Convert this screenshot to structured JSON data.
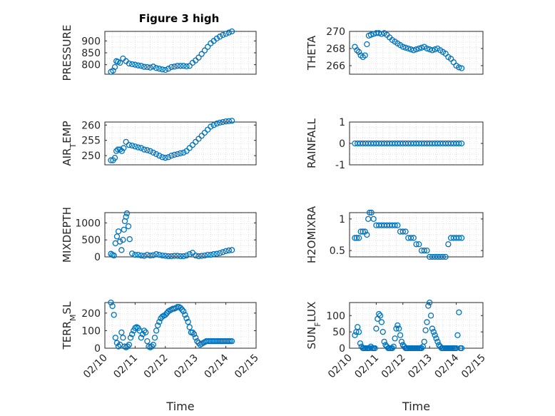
{
  "title": "Figure 3 high",
  "marker_color": "#0072bd",
  "chart_data": [
    {
      "id": "pressure",
      "type": "scatter",
      "ylabel_parts": [
        "PRESSURE"
      ],
      "xlim": [
        0,
        5
      ],
      "ylim": [
        760,
        940
      ],
      "yticks": [
        800,
        850,
        900
      ],
      "xticks": [],
      "x": [
        0.2,
        0.27,
        0.33,
        0.38,
        0.43,
        0.5,
        0.6,
        0.7,
        0.8,
        0.9,
        1.0,
        1.1,
        1.2,
        1.3,
        1.4,
        1.5,
        1.6,
        1.7,
        1.8,
        1.9,
        2.0,
        2.1,
        2.2,
        2.3,
        2.4,
        2.5,
        2.6,
        2.7,
        2.8,
        2.9,
        3.0,
        3.1,
        3.2,
        3.3,
        3.4,
        3.5,
        3.6,
        3.7,
        3.8,
        3.9,
        4.0,
        4.1,
        4.2
      ],
      "y": [
        770,
        775,
        790,
        815,
        812,
        808,
        826,
        815,
        805,
        802,
        800,
        797,
        795,
        791,
        790,
        788,
        792,
        786,
        783,
        780,
        778,
        783,
        790,
        792,
        795,
        795,
        795,
        793,
        795,
        808,
        818,
        830,
        845,
        860,
        875,
        890,
        900,
        910,
        918,
        925,
        930,
        935,
        940
      ]
    },
    {
      "id": "theta",
      "type": "scatter",
      "ylabel_parts": [
        "THETA"
      ],
      "xlim": [
        0,
        5
      ],
      "ylim": [
        265,
        270
      ],
      "yticks": [
        266,
        268,
        270
      ],
      "xticks": [],
      "x": [
        0.2,
        0.28,
        0.35,
        0.42,
        0.5,
        0.58,
        0.65,
        0.72,
        0.8,
        0.9,
        1.0,
        1.1,
        1.2,
        1.3,
        1.4,
        1.5,
        1.6,
        1.7,
        1.8,
        1.9,
        2.0,
        2.1,
        2.2,
        2.3,
        2.4,
        2.5,
        2.6,
        2.7,
        2.8,
        2.9,
        3.0,
        3.1,
        3.2,
        3.3,
        3.4,
        3.5,
        3.6,
        3.7,
        3.8,
        3.9,
        4.0,
        4.1,
        4.2
      ],
      "y": [
        268.2,
        267.8,
        267.6,
        267.2,
        267.0,
        267.2,
        268.5,
        269.5,
        269.6,
        269.7,
        269.8,
        269.8,
        269.7,
        269.8,
        269.6,
        269.3,
        269.0,
        268.8,
        268.6,
        268.4,
        268.2,
        268.1,
        268.0,
        267.9,
        267.8,
        267.9,
        268.0,
        268.1,
        268.2,
        268.0,
        267.9,
        267.8,
        267.9,
        268.0,
        267.8,
        267.6,
        267.4,
        267.0,
        266.8,
        266.4,
        266.0,
        265.8,
        265.7
      ]
    },
    {
      "id": "air_temp",
      "type": "scatter",
      "ylabel_parts": [
        "AIR",
        "T",
        "EMP"
      ],
      "xlim": [
        0,
        5
      ],
      "ylim": [
        247,
        261
      ],
      "yticks": [
        250,
        255,
        260
      ],
      "xticks": [],
      "x": [
        0.2,
        0.27,
        0.33,
        0.38,
        0.43,
        0.5,
        0.56,
        0.62,
        0.7,
        0.8,
        0.9,
        1.0,
        1.1,
        1.2,
        1.3,
        1.4,
        1.5,
        1.6,
        1.7,
        1.8,
        1.9,
        2.0,
        2.1,
        2.2,
        2.3,
        2.4,
        2.5,
        2.6,
        2.7,
        2.8,
        2.9,
        3.0,
        3.1,
        3.2,
        3.3,
        3.4,
        3.5,
        3.6,
        3.7,
        3.8,
        3.9,
        4.0,
        4.1,
        4.2
      ],
      "y": [
        248.5,
        248.5,
        249.3,
        251.5,
        252.0,
        252.0,
        251.5,
        252.5,
        254.5,
        253.5,
        253.3,
        253.0,
        252.7,
        252.5,
        252.0,
        251.8,
        251.5,
        251.0,
        250.5,
        250.0,
        249.5,
        249.3,
        249.5,
        250.0,
        250.3,
        250.5,
        250.8,
        251.0,
        251.5,
        252.5,
        253.5,
        254.5,
        255.5,
        256.5,
        257.5,
        258.5,
        259.5,
        260.0,
        260.5,
        260.8,
        261.0,
        261.2,
        261.3,
        261.4
      ]
    },
    {
      "id": "rainfall",
      "type": "scatter",
      "ylabel_parts": [
        "RAINFALL"
      ],
      "xlim": [
        0,
        5
      ],
      "ylim": [
        -1,
        1
      ],
      "yticks": [
        -1,
        0,
        1
      ],
      "xticks": [],
      "x": [
        0.2,
        0.3,
        0.4,
        0.5,
        0.6,
        0.7,
        0.8,
        0.9,
        1.0,
        1.1,
        1.2,
        1.3,
        1.4,
        1.5,
        1.6,
        1.7,
        1.8,
        1.9,
        2.0,
        2.1,
        2.2,
        2.3,
        2.4,
        2.5,
        2.6,
        2.7,
        2.8,
        2.9,
        3.0,
        3.1,
        3.2,
        3.3,
        3.4,
        3.5,
        3.6,
        3.7,
        3.8,
        3.9,
        4.0,
        4.1,
        4.2
      ],
      "y": [
        0,
        0,
        0,
        0,
        0,
        0,
        0,
        0,
        0,
        0,
        0,
        0,
        0,
        0,
        0,
        0,
        0,
        0,
        0,
        0,
        0,
        0,
        0,
        0,
        0,
        0,
        0,
        0,
        0,
        0,
        0,
        0,
        0,
        0,
        0,
        0,
        0,
        0,
        0,
        0,
        0
      ]
    },
    {
      "id": "mixdepth",
      "type": "scatter",
      "ylabel_parts": [
        "MIXDEPTH"
      ],
      "xlim": [
        0,
        5
      ],
      "ylim": [
        0,
        1300
      ],
      "yticks": [
        0,
        500,
        1000
      ],
      "xticks": [],
      "x": [
        0.2,
        0.25,
        0.3,
        0.35,
        0.4,
        0.45,
        0.5,
        0.55,
        0.6,
        0.63,
        0.66,
        0.7,
        0.73,
        0.78,
        0.82,
        0.9,
        1.0,
        1.1,
        1.2,
        1.3,
        1.4,
        1.5,
        1.6,
        1.7,
        1.8,
        1.9,
        2.0,
        2.1,
        2.2,
        2.3,
        2.4,
        2.5,
        2.6,
        2.7,
        2.8,
        2.9,
        3.0,
        3.1,
        3.2,
        3.3,
        3.4,
        3.5,
        3.6,
        3.7,
        3.8,
        3.9,
        4.0,
        4.1,
        4.2
      ],
      "y": [
        90,
        60,
        40,
        400,
        600,
        750,
        450,
        200,
        500,
        800,
        1050,
        1180,
        1280,
        900,
        520,
        100,
        60,
        60,
        40,
        30,
        60,
        40,
        50,
        80,
        60,
        40,
        30,
        20,
        20,
        30,
        30,
        20,
        20,
        40,
        80,
        120,
        40,
        20,
        30,
        40,
        60,
        60,
        80,
        90,
        110,
        140,
        170,
        190,
        200
      ]
    },
    {
      "id": "h2omixra",
      "type": "scatter",
      "ylabel_parts": [
        "H2OMIXRA"
      ],
      "xlim": [
        0,
        5
      ],
      "ylim": [
        0.4,
        1.1
      ],
      "yticks": [
        0.5,
        1
      ],
      "xticks": [],
      "x": [
        0.2,
        0.27,
        0.35,
        0.42,
        0.5,
        0.58,
        0.65,
        0.7,
        0.75,
        0.82,
        0.9,
        1.0,
        1.1,
        1.2,
        1.3,
        1.4,
        1.5,
        1.6,
        1.7,
        1.8,
        1.9,
        2.0,
        2.1,
        2.2,
        2.3,
        2.4,
        2.5,
        2.6,
        2.7,
        2.8,
        2.9,
        3.0,
        3.1,
        3.2,
        3.3,
        3.4,
        3.5,
        3.6,
        3.7,
        3.8,
        3.9,
        4.0,
        4.1,
        4.2
      ],
      "y": [
        0.7,
        0.7,
        0.7,
        0.8,
        0.8,
        0.8,
        0.75,
        1.0,
        1.1,
        1.1,
        1.0,
        0.9,
        0.9,
        0.9,
        0.9,
        0.9,
        0.9,
        0.9,
        0.9,
        0.9,
        0.8,
        0.8,
        0.8,
        0.7,
        0.7,
        0.7,
        0.6,
        0.6,
        0.5,
        0.5,
        0.5,
        0.4,
        0.4,
        0.4,
        0.4,
        0.4,
        0.4,
        0.4,
        0.6,
        0.7,
        0.7,
        0.7,
        0.7,
        0.7
      ]
    },
    {
      "id": "terr_msl",
      "type": "scatter",
      "ylabel_parts": [
        "TERR",
        "M",
        "SL"
      ],
      "xlim": [
        0,
        5
      ],
      "ylim": [
        0,
        260
      ],
      "yticks": [
        0,
        100,
        200
      ],
      "xticks": [
        0,
        1,
        2,
        3,
        4,
        5
      ],
      "xticklabels": [
        "02/10",
        "02/11",
        "02/12",
        "02/13",
        "02/14",
        "02/15"
      ],
      "xlabel": "Time",
      "x": [
        0.2,
        0.25,
        0.3,
        0.35,
        0.4,
        0.45,
        0.5,
        0.55,
        0.6,
        0.65,
        0.7,
        0.75,
        0.8,
        0.85,
        0.9,
        0.95,
        1.0,
        1.05,
        1.1,
        1.15,
        1.2,
        1.25,
        1.3,
        1.35,
        1.4,
        1.45,
        1.5,
        1.55,
        1.6,
        1.65,
        1.7,
        1.75,
        1.8,
        1.85,
        1.9,
        1.95,
        2.0,
        2.05,
        2.1,
        2.15,
        2.2,
        2.25,
        2.3,
        2.35,
        2.4,
        2.45,
        2.5,
        2.55,
        2.6,
        2.65,
        2.7,
        2.75,
        2.8,
        2.85,
        2.9,
        2.95,
        3.0,
        3.05,
        3.1,
        3.15,
        3.2,
        3.25,
        3.3,
        3.35,
        3.4,
        3.45,
        3.5,
        3.55,
        3.6,
        3.65,
        3.7,
        3.75,
        3.8,
        3.85,
        3.9,
        3.95,
        4.0,
        4.05,
        4.1,
        4.15,
        4.2
      ],
      "y": [
        260,
        240,
        190,
        60,
        30,
        10,
        20,
        90,
        60,
        10,
        5,
        10,
        20,
        60,
        80,
        100,
        115,
        120,
        115,
        100,
        60,
        80,
        100,
        90,
        40,
        10,
        5,
        10,
        20,
        60,
        100,
        130,
        150,
        170,
        180,
        185,
        190,
        200,
        210,
        215,
        220,
        225,
        225,
        230,
        235,
        235,
        230,
        220,
        210,
        190,
        170,
        150,
        120,
        90,
        90,
        80,
        60,
        40,
        30,
        20,
        25,
        30,
        35,
        40,
        40,
        40,
        40,
        40,
        40,
        40,
        40,
        40,
        40,
        40,
        40,
        40,
        40,
        40,
        40,
        40,
        40
      ]
    },
    {
      "id": "sun_flux",
      "type": "scatter",
      "ylabel_parts": [
        "SUN",
        "F",
        "LUX"
      ],
      "xlim": [
        0,
        5
      ],
      "ylim": [
        0,
        140
      ],
      "yticks": [
        0,
        50,
        100
      ],
      "xticks": [
        0,
        1,
        2,
        3,
        4,
        5
      ],
      "xticklabels": [
        "02/10",
        "02/11",
        "02/12",
        "02/13",
        "02/14",
        "02/15"
      ],
      "xlabel": "Time",
      "x": [
        0.2,
        0.25,
        0.3,
        0.35,
        0.4,
        0.45,
        0.5,
        0.55,
        0.6,
        0.65,
        0.7,
        0.75,
        0.8,
        0.85,
        0.9,
        0.95,
        1.0,
        1.05,
        1.1,
        1.15,
        1.2,
        1.25,
        1.3,
        1.35,
        1.4,
        1.45,
        1.5,
        1.55,
        1.6,
        1.65,
        1.7,
        1.75,
        1.8,
        1.85,
        1.9,
        1.95,
        2.0,
        2.05,
        2.1,
        2.15,
        2.2,
        2.25,
        2.3,
        2.35,
        2.4,
        2.45,
        2.5,
        2.55,
        2.6,
        2.65,
        2.7,
        2.75,
        2.8,
        2.85,
        2.9,
        2.95,
        3.0,
        3.05,
        3.1,
        3.15,
        3.2,
        3.25,
        3.3,
        3.35,
        3.4,
        3.45,
        3.5,
        3.55,
        3.6,
        3.65,
        3.7,
        3.75,
        3.8,
        3.85,
        3.9,
        3.95,
        4.0,
        4.05,
        4.1,
        4.15,
        4.2
      ],
      "y": [
        40,
        50,
        65,
        50,
        15,
        5,
        0,
        0,
        0,
        0,
        0,
        0,
        5,
        0,
        0,
        0,
        60,
        90,
        105,
        100,
        80,
        50,
        20,
        10,
        5,
        0,
        0,
        0,
        0,
        5,
        30,
        60,
        70,
        60,
        40,
        20,
        10,
        5,
        0,
        0,
        0,
        0,
        0,
        0,
        0,
        0,
        0,
        0,
        0,
        0,
        0,
        5,
        20,
        55,
        80,
        130,
        140,
        100,
        60,
        50,
        40,
        30,
        20,
        10,
        5,
        0,
        0,
        0,
        0,
        0,
        0,
        0,
        0,
        0,
        0,
        0,
        0,
        40,
        110,
        0,
        0
      ]
    }
  ]
}
